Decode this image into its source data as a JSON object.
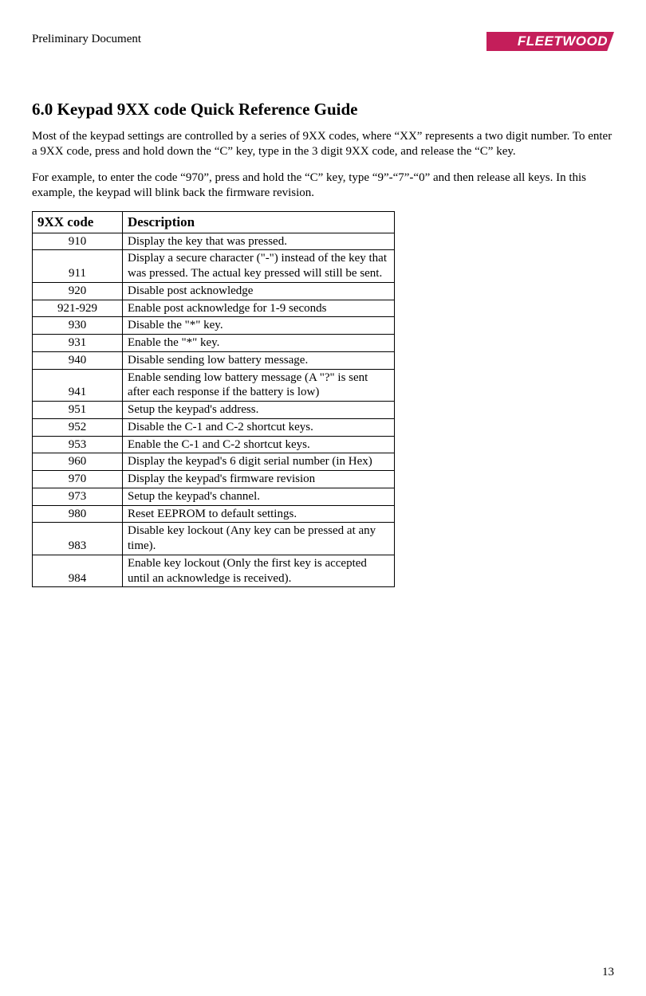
{
  "header": {
    "preliminary": "Preliminary Document",
    "logo_text": "FLEETWOOD"
  },
  "section": {
    "title": "6.0 Keypad 9XX code Quick Reference Guide",
    "para1": "Most of the keypad settings are controlled by a series of 9XX codes, where “XX” represents a two digit number.  To enter a 9XX code, press and hold down the “C” key, type in the 3 digit 9XX code, and release the “C” key.",
    "para2": "For example, to enter the code “970”, press and hold the “C” key, type “9”-“7”-“0” and then release all keys.  In this example, the keypad will blink back the firmware revision."
  },
  "table": {
    "headers": {
      "code": "9XX code",
      "desc": "Description"
    },
    "rows": [
      {
        "code": "910",
        "desc": "Display the key that was pressed."
      },
      {
        "code": "911",
        "desc": "Display a secure character (\"-\") instead of the key that was pressed.  The actual key pressed will still be sent."
      },
      {
        "code": "920",
        "desc": "Disable post acknowledge"
      },
      {
        "code": "921-929",
        "desc": "Enable  post acknowledge for 1-9 seconds"
      },
      {
        "code": "930",
        "desc": "Disable the \"*\" key."
      },
      {
        "code": "931",
        "desc": "Enable the \"*\" key."
      },
      {
        "code": "940",
        "desc": "Disable sending low battery message."
      },
      {
        "code": "941",
        "desc": "Enable sending low battery message (A \"?\" is sent after each response if the battery is low)"
      },
      {
        "code": "951",
        "desc": "Setup the keypad's address."
      },
      {
        "code": "952",
        "desc": "Disable the C-1 and C-2 shortcut keys."
      },
      {
        "code": "953",
        "desc": "Enable the C-1 and C-2 shortcut keys."
      },
      {
        "code": "960",
        "desc": "Display the keypad's 6 digit serial number (in Hex)"
      },
      {
        "code": "970",
        "desc": "Display the keypad's firmware revision"
      },
      {
        "code": "973",
        "desc": "Setup the keypad's channel."
      },
      {
        "code": "980",
        "desc": "Reset EEPROM to default settings."
      },
      {
        "code": "983",
        "desc": "Disable key lockout (Any key can be pressed at any time)."
      },
      {
        "code": "984",
        "desc": "Enable key lockout (Only the first key is accepted until an acknowledge is received)."
      }
    ]
  },
  "page_number": "13"
}
